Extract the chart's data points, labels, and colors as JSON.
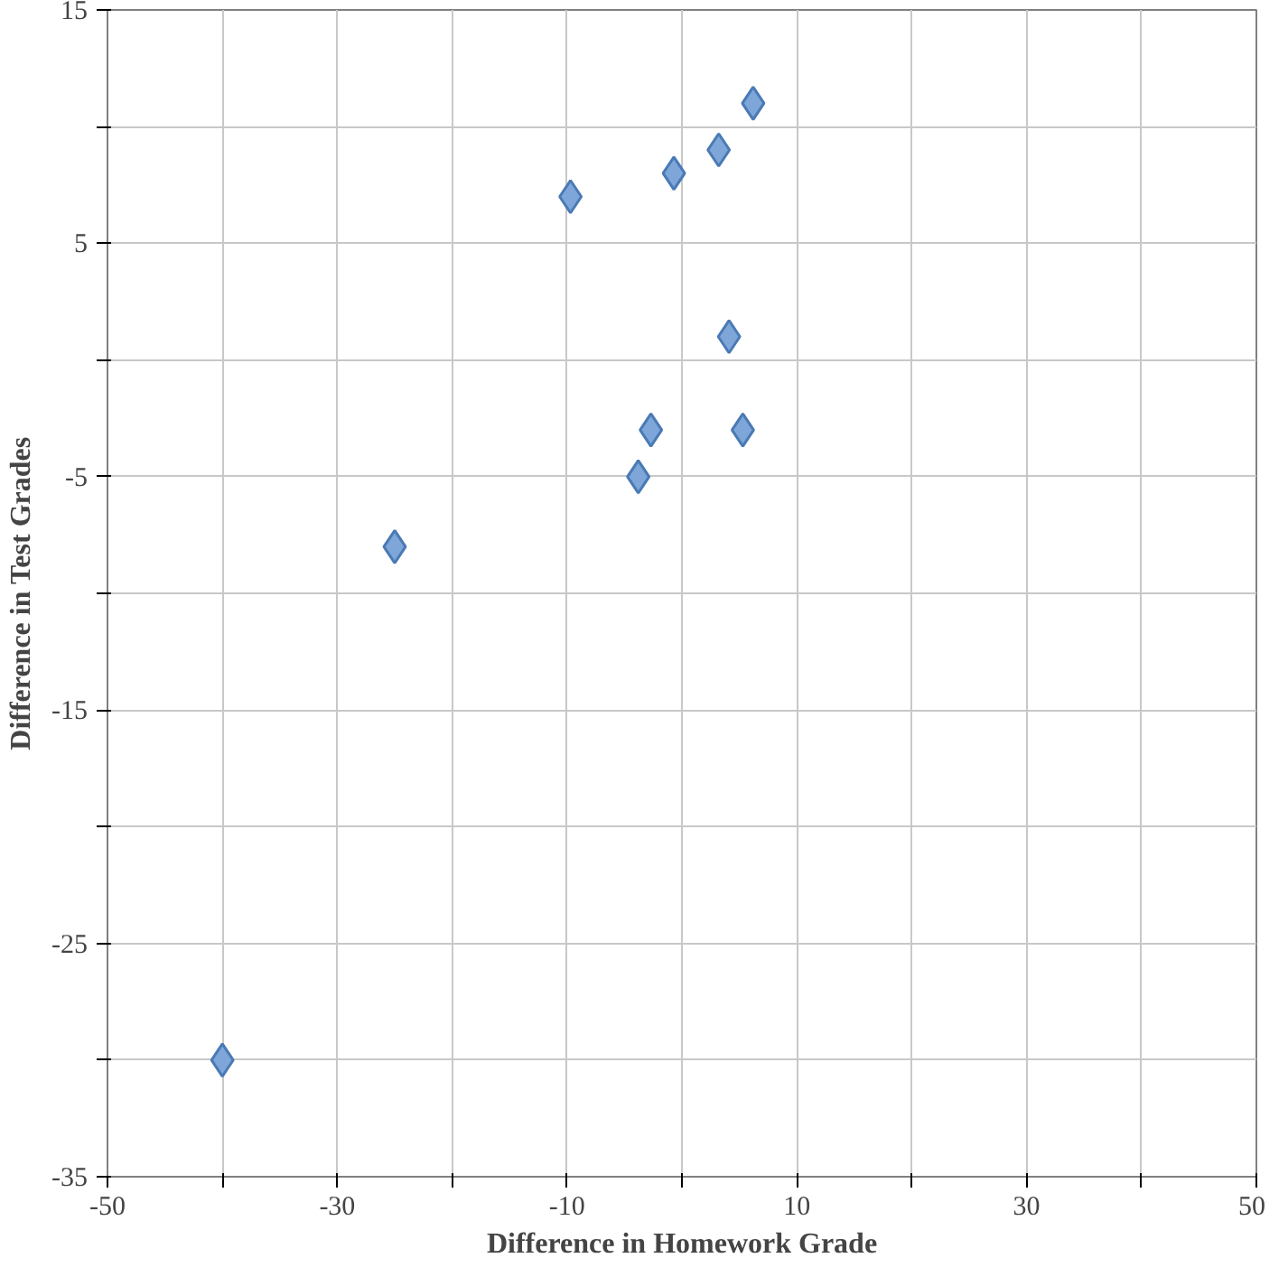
{
  "chart_data": {
    "type": "scatter",
    "xlabel": "Difference in Homework Grade",
    "ylabel": "Difference in Test Grades",
    "x": [
      -40,
      -25,
      -9.7,
      -0.7,
      3.2,
      6.2,
      4.1,
      -2.7,
      5.3,
      -3.8
    ],
    "series": [
      {
        "color": "#7ea6d8",
        "values": [
          -30,
          -8,
          7,
          8,
          9,
          11,
          1,
          -3,
          -3,
          -5
        ]
      }
    ],
    "xlim": [
      -50,
      50
    ],
    "ylim": [
      -35,
      15
    ],
    "xticks": [
      -50,
      {
        "value": -40,
        "label": null
      },
      -30,
      {
        "value": -20,
        "label": null
      },
      -10,
      {
        "value": 0,
        "label": null
      },
      10,
      {
        "value": 20,
        "label": null
      },
      30,
      {
        "value": 40,
        "label": null
      },
      50
    ],
    "yticks": [
      -35,
      {
        "value": -30,
        "label": null
      },
      -25,
      {
        "value": -20,
        "label": null
      },
      -15,
      {
        "value": -10,
        "label": null
      },
      -5,
      {
        "value": 0,
        "label": null
      },
      5,
      {
        "value": 10,
        "label": null
      },
      15
    ],
    "grid": true,
    "marker": "diamond"
  }
}
